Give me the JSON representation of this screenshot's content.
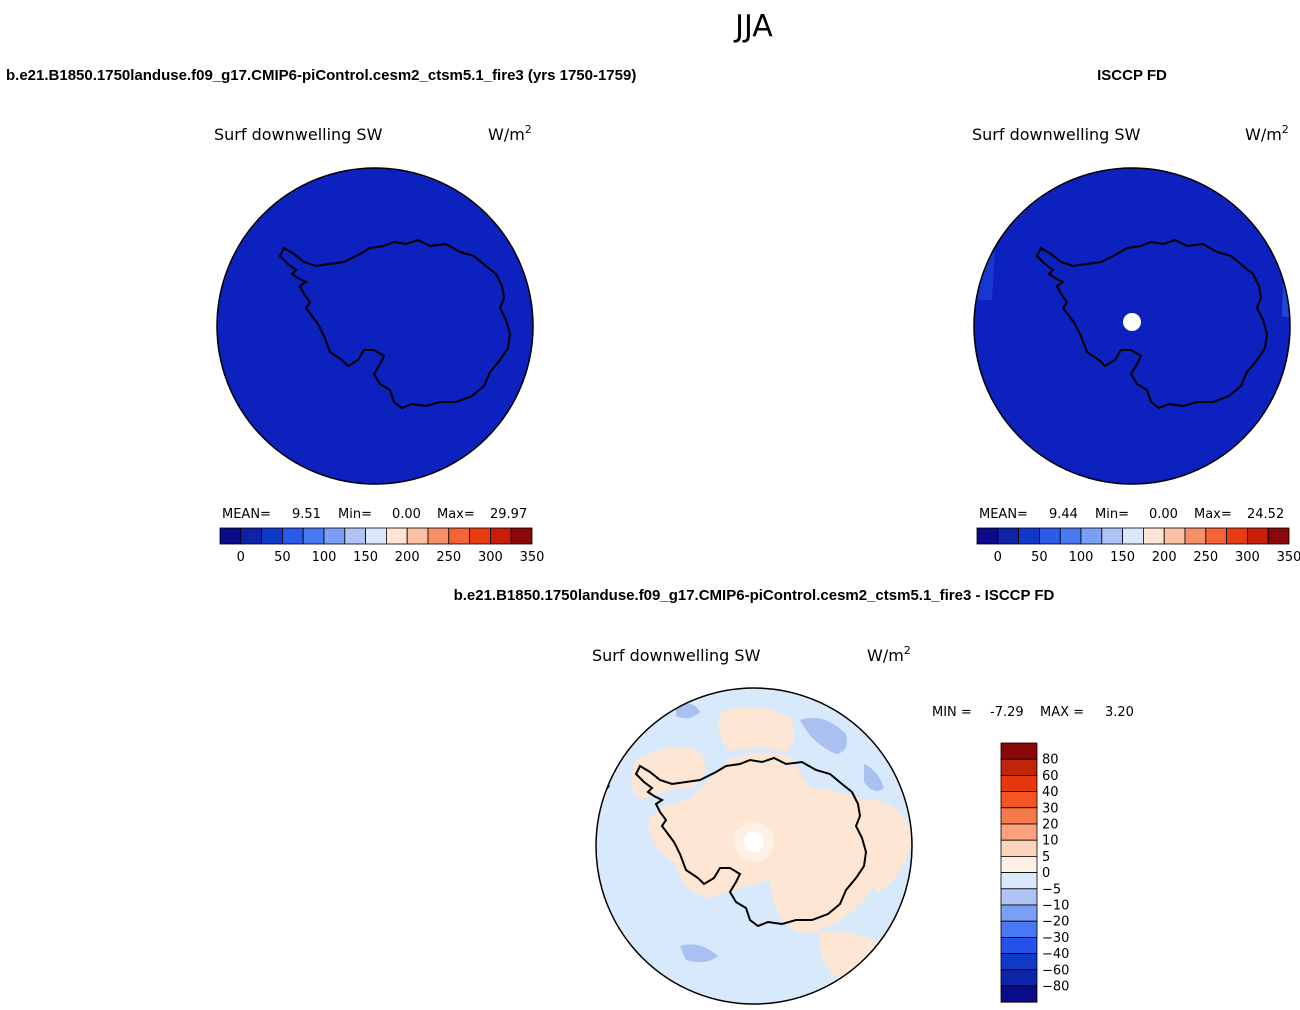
{
  "figure": {
    "season": "JJA"
  },
  "colors": {
    "abs": [
      "#0a0a8a",
      "#0d24a8",
      "#1039c8",
      "#2b5be8",
      "#4a78f2",
      "#7b9ff5",
      "#aec4f5",
      "#dbe8fb",
      "#fde4d4",
      "#fbc0a3",
      "#f79068",
      "#f46236",
      "#e83d10",
      "#c91f0a",
      "#8c0707"
    ],
    "diff": [
      "#0a0a8a",
      "#0d24a8",
      "#1039c8",
      "#2552e8",
      "#4a78f2",
      "#7b9ff5",
      "#aec4f5",
      "#dbe8fb",
      "#fef1e4",
      "#fbd4bb",
      "#fba27c",
      "#f77a4c",
      "#f45522",
      "#e83710",
      "#c0240a",
      "#8c0707"
    ],
    "mapFill": "#0c21bd",
    "diffOcean": "#d7e9fb",
    "diffPos": "#fde6d3",
    "diffNeg": "#aac0f1"
  },
  "chart_data": [
    {
      "type": "heatmap",
      "panel": "top-left",
      "title": "b.e21.B1850.1750landuse.f09_g17.CMIP6-piControl.cesm2_ctsm5.1_fire3 (yrs 1750-1759)",
      "variable": "Surf downwelling SW",
      "units": "W/m",
      "units_sup": "2",
      "stats": {
        "mean_label": "MEAN=",
        "mean": "9.51",
        "min_label": "Min=",
        "min": "0.00",
        "max_label": "Max=",
        "max": "29.97"
      },
      "colorbar": {
        "tick_labels": [
          "0",
          "50",
          "100",
          "150",
          "200",
          "250",
          "300",
          "350"
        ]
      }
    },
    {
      "type": "heatmap",
      "panel": "top-right",
      "title": "ISCCP FD",
      "variable": "Surf downwelling SW",
      "units": "W/m",
      "units_sup": "2",
      "stats": {
        "mean_label": "MEAN=",
        "mean": "9.44",
        "min_label": "Min=",
        "min": "0.00",
        "max_label": "Max=",
        "max": "24.52"
      },
      "colorbar": {
        "tick_labels": [
          "0",
          "50",
          "100",
          "150",
          "200",
          "250",
          "300",
          "350"
        ]
      }
    },
    {
      "type": "heatmap",
      "panel": "bottom",
      "title": "b.e21.B1850.1750landuse.f09_g17.CMIP6-piControl.cesm2_ctsm5.1_fire3 - ISCCP FD",
      "variable": "Surf downwelling SW",
      "units": "W/m",
      "units_sup": "2",
      "stats": {
        "min_label": "MIN =",
        "min": "-7.29",
        "max_label": "MAX =",
        "max": "3.20"
      },
      "colorbar": {
        "tick_labels": [
          "80",
          "60",
          "40",
          "30",
          "20",
          "10",
          "5",
          "0",
          "−5",
          "−10",
          "−20",
          "−30",
          "−40",
          "−60",
          "−80"
        ]
      }
    }
  ]
}
